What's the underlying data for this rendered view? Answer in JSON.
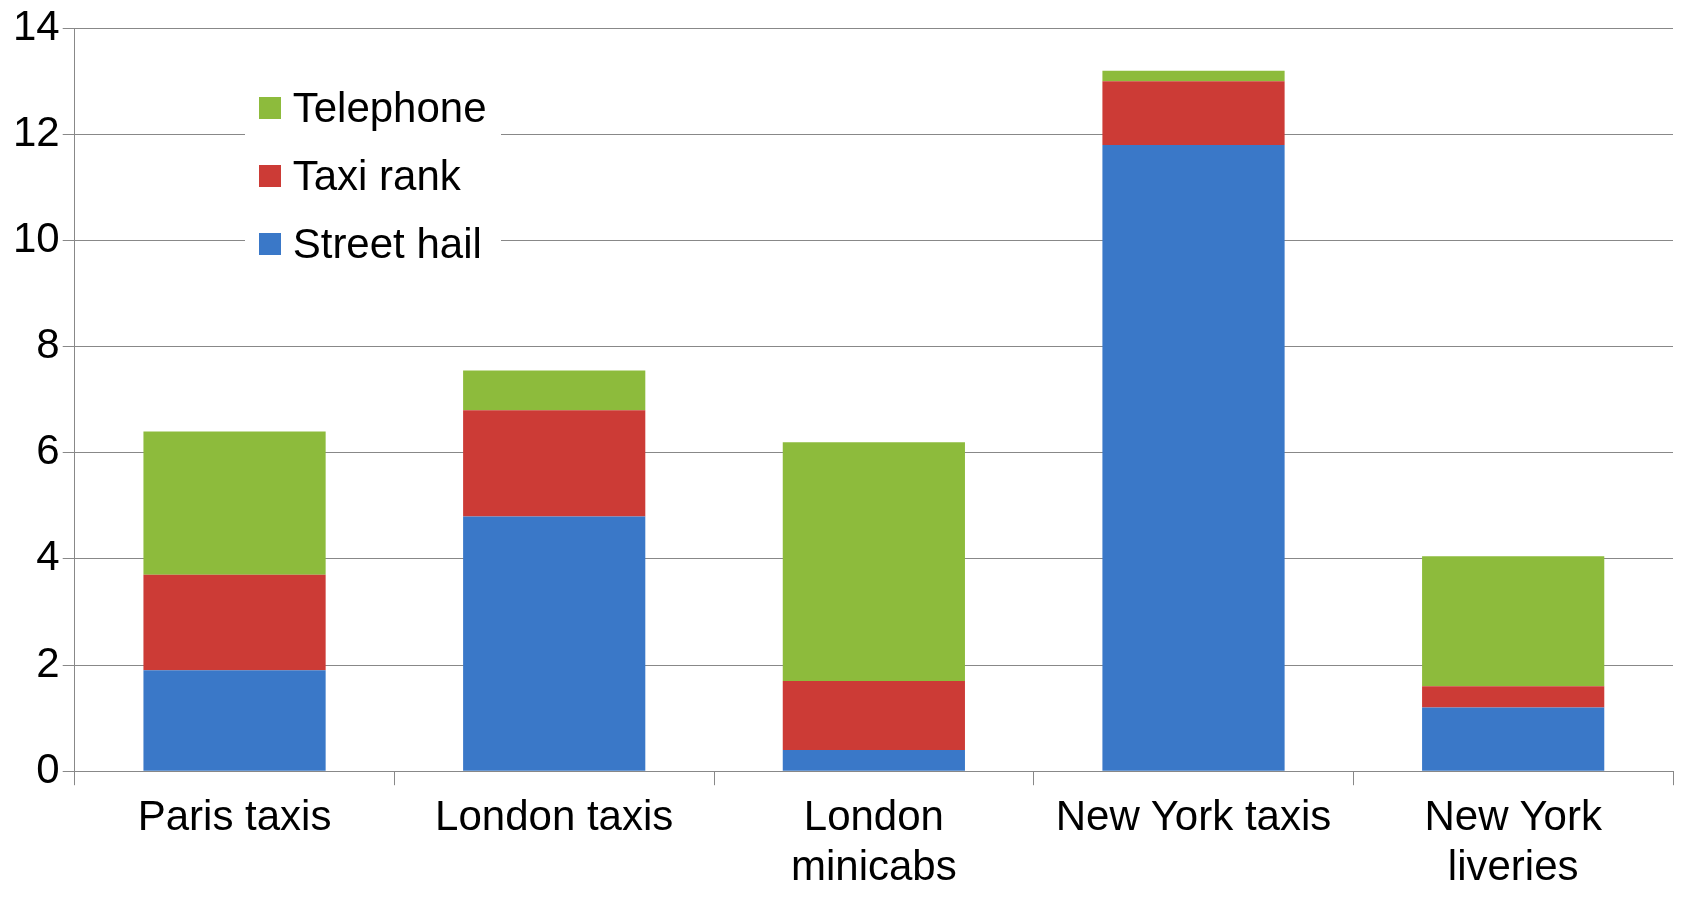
{
  "chart_data": {
    "type": "bar",
    "stacked": true,
    "categories": [
      "Paris taxis",
      "London taxis",
      "London minicabs",
      "New York taxis",
      "New York liveries"
    ],
    "series": [
      {
        "name": "Street hail",
        "color": "#3a78c8",
        "values": [
          1.9,
          4.8,
          0.4,
          11.8,
          1.2
        ]
      },
      {
        "name": "Taxi rank",
        "color": "#cc3b36",
        "values": [
          1.8,
          2.0,
          1.3,
          1.2,
          0.4
        ]
      },
      {
        "name": "Telephone",
        "color": "#8dbb3c",
        "values": [
          2.7,
          0.75,
          4.5,
          0.2,
          2.45
        ]
      }
    ],
    "ylim": [
      0,
      14
    ],
    "yticks": [
      0,
      2,
      4,
      6,
      8,
      10,
      12,
      14
    ],
    "grid": "y",
    "legend": "top left"
  }
}
